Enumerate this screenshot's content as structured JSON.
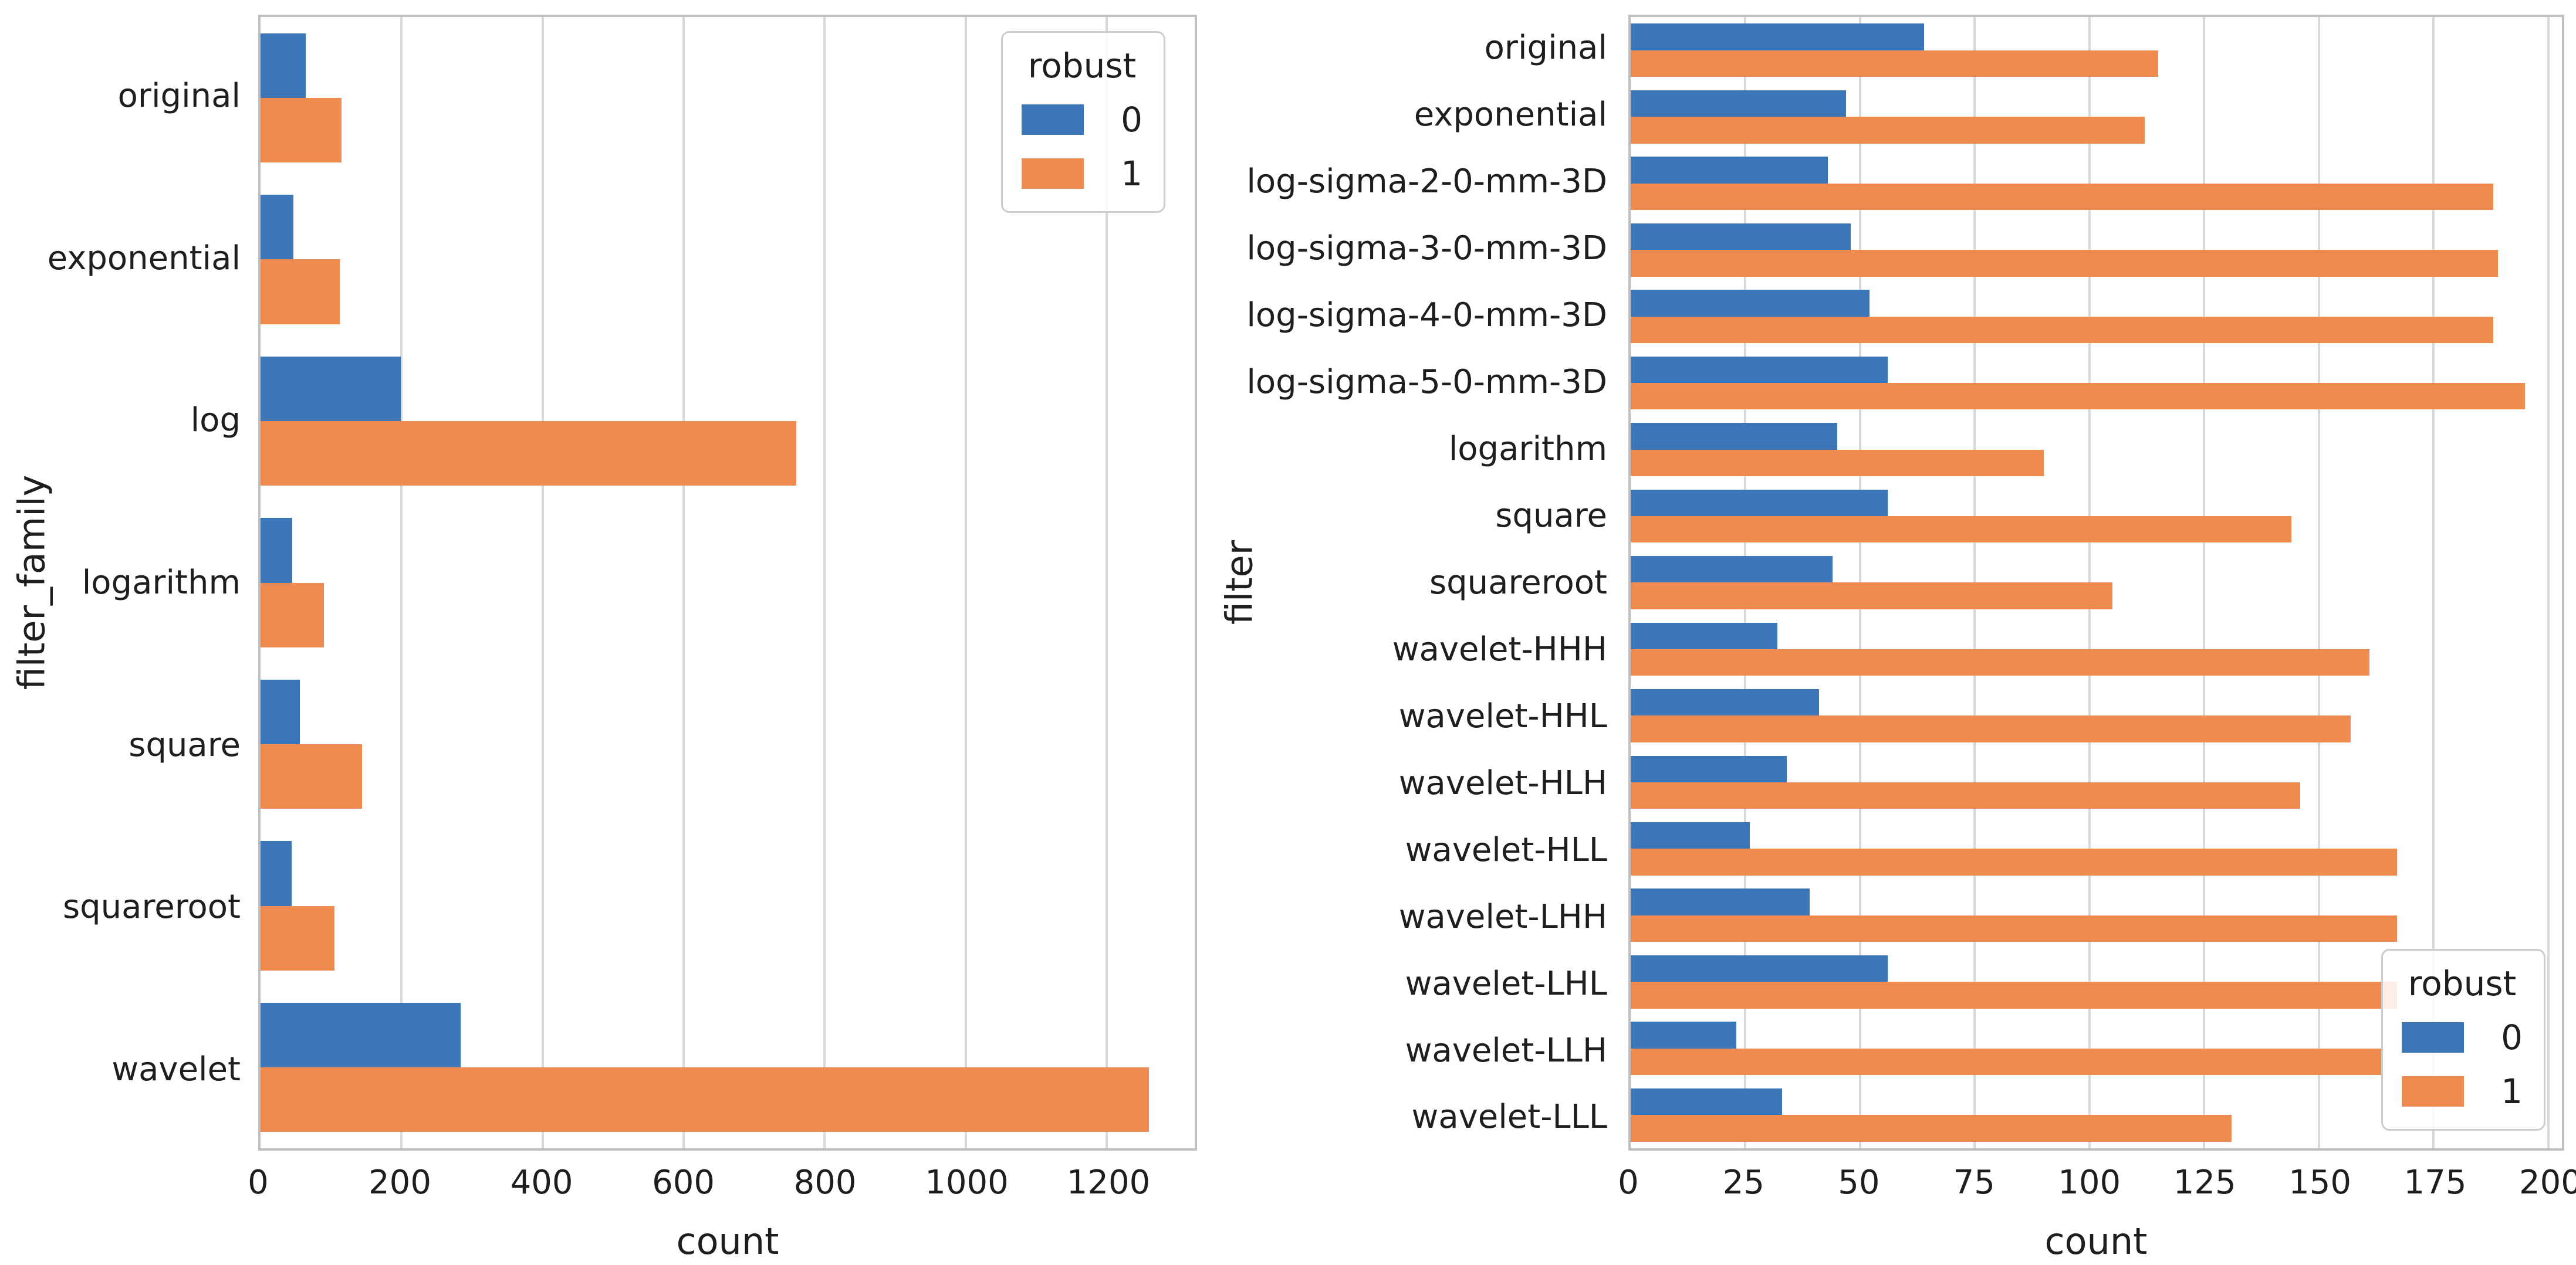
{
  "figure": {
    "background": "#ffffff"
  },
  "colors": {
    "robust0_blue": "#3b77b8",
    "robust1_orange": "#ef8a50",
    "grid": "#d9d9d9",
    "spine": "#bfbfbf",
    "text": "#1e1e1e"
  },
  "chart_data": [
    {
      "type": "bar",
      "orientation": "horizontal",
      "xlabel": "count",
      "ylabel": "filter_family",
      "categories": [
        "original",
        "exponential",
        "log",
        "logarithm",
        "square",
        "squareroot",
        "wavelet"
      ],
      "series": [
        {
          "name": "0",
          "color": "#3b77b8",
          "values": [
            64,
            47,
            199,
            45,
            56,
            44,
            284
          ]
        },
        {
          "name": "1",
          "color": "#ef8a50",
          "values": [
            115,
            112,
            760,
            90,
            144,
            105,
            1260
          ]
        }
      ],
      "xlim": [
        0,
        1325
      ],
      "xticks": [
        0,
        200,
        400,
        600,
        800,
        1000,
        1200
      ],
      "grid": "vertical",
      "legend": {
        "title": "robust",
        "position": "upper right",
        "entries": [
          "0",
          "1"
        ]
      }
    },
    {
      "type": "bar",
      "orientation": "horizontal",
      "xlabel": "count",
      "ylabel": "filter",
      "categories": [
        "original",
        "exponential",
        "log-sigma-2-0-mm-3D",
        "log-sigma-3-0-mm-3D",
        "log-sigma-4-0-mm-3D",
        "log-sigma-5-0-mm-3D",
        "logarithm",
        "square",
        "squareroot",
        "wavelet-HHH",
        "wavelet-HHL",
        "wavelet-HLH",
        "wavelet-HLL",
        "wavelet-LHH",
        "wavelet-LHL",
        "wavelet-LLH",
        "wavelet-LLL"
      ],
      "series": [
        {
          "name": "0",
          "color": "#3b77b8",
          "values": [
            64,
            47,
            43,
            48,
            52,
            56,
            45,
            56,
            44,
            32,
            41,
            34,
            26,
            39,
            56,
            23,
            33
          ]
        },
        {
          "name": "1",
          "color": "#ef8a50",
          "values": [
            115,
            112,
            188,
            189,
            188,
            195,
            90,
            144,
            105,
            161,
            157,
            146,
            167,
            167,
            167,
            164,
            131
          ]
        }
      ],
      "xlim": [
        0,
        203
      ],
      "xticks": [
        0,
        25,
        50,
        75,
        100,
        125,
        150,
        175,
        200
      ],
      "grid": "vertical",
      "legend": {
        "title": "robust",
        "position": "lower right",
        "entries": [
          "0",
          "1"
        ]
      }
    }
  ]
}
